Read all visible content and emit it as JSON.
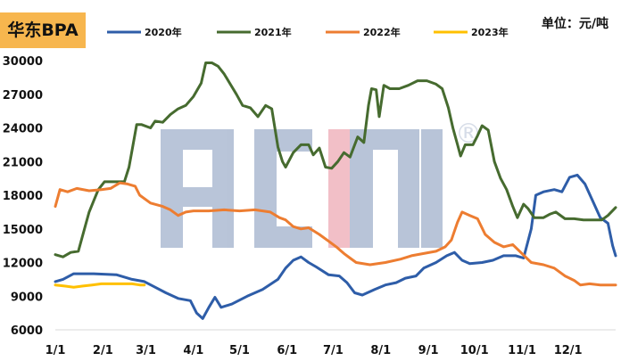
{
  "chart_data": {
    "type": "line",
    "title": "华东BPA",
    "unit_label": "单位：元/吨",
    "ylim": [
      6000,
      30000
    ],
    "y_ticks": [
      "30000",
      "27000",
      "24000",
      "21000",
      "18000",
      "15000",
      "12000",
      "9000",
      "6000"
    ],
    "y_tick_values": [
      30000,
      27000,
      24000,
      21000,
      18000,
      15000,
      12000,
      9000,
      6000
    ],
    "x_ticks": [
      "1/1",
      "2/1",
      "3/1",
      "4/1",
      "5/1",
      "6/1",
      "7/1",
      "8/1",
      "9/1",
      "10/1",
      "11/1",
      "12/1"
    ],
    "x_range_days": [
      0,
      365
    ],
    "legend_position": "top",
    "series": [
      {
        "name": "2020年",
        "color": "#2e5da8",
        "points": [
          [
            0,
            10300
          ],
          [
            5,
            10500
          ],
          [
            12,
            11000
          ],
          [
            25,
            11000
          ],
          [
            40,
            10900
          ],
          [
            50,
            10500
          ],
          [
            58,
            10300
          ],
          [
            65,
            9800
          ],
          [
            72,
            9300
          ],
          [
            80,
            8800
          ],
          [
            88,
            8600
          ],
          [
            92,
            7500
          ],
          [
            96,
            7000
          ],
          [
            100,
            8000
          ],
          [
            104,
            8900
          ],
          [
            108,
            8000
          ],
          [
            115,
            8300
          ],
          [
            125,
            9000
          ],
          [
            135,
            9600
          ],
          [
            145,
            10500
          ],
          [
            150,
            11500
          ],
          [
            155,
            12200
          ],
          [
            160,
            12500
          ],
          [
            165,
            12000
          ],
          [
            170,
            11600
          ],
          [
            178,
            10900
          ],
          [
            185,
            10800
          ],
          [
            190,
            10200
          ],
          [
            195,
            9300
          ],
          [
            200,
            9100
          ],
          [
            208,
            9600
          ],
          [
            215,
            10000
          ],
          [
            222,
            10200
          ],
          [
            228,
            10600
          ],
          [
            235,
            10800
          ],
          [
            240,
            11500
          ],
          [
            248,
            12000
          ],
          [
            255,
            12600
          ],
          [
            260,
            12900
          ],
          [
            265,
            12200
          ],
          [
            270,
            11900
          ],
          [
            278,
            12000
          ],
          [
            285,
            12200
          ],
          [
            292,
            12600
          ],
          [
            300,
            12600
          ],
          [
            305,
            12400
          ],
          [
            310,
            15000
          ],
          [
            313,
            18000
          ],
          [
            318,
            18300
          ],
          [
            325,
            18500
          ],
          [
            330,
            18300
          ],
          [
            335,
            19600
          ],
          [
            340,
            19800
          ],
          [
            345,
            19000
          ],
          [
            350,
            17500
          ],
          [
            355,
            16000
          ],
          [
            360,
            15500
          ],
          [
            363,
            13500
          ],
          [
            365,
            12600
          ]
        ]
      },
      {
        "name": "2021年",
        "color": "#466b2f",
        "points": [
          [
            0,
            12700
          ],
          [
            5,
            12500
          ],
          [
            10,
            12900
          ],
          [
            15,
            13000
          ],
          [
            20,
            15500
          ],
          [
            22,
            16500
          ],
          [
            25,
            17500
          ],
          [
            28,
            18500
          ],
          [
            32,
            19200
          ],
          [
            40,
            19200
          ],
          [
            45,
            19200
          ],
          [
            48,
            20500
          ],
          [
            50,
            22000
          ],
          [
            53,
            24300
          ],
          [
            56,
            24300
          ],
          [
            62,
            24000
          ],
          [
            65,
            24600
          ],
          [
            70,
            24500
          ],
          [
            75,
            25200
          ],
          [
            80,
            25700
          ],
          [
            85,
            26000
          ],
          [
            90,
            26800
          ],
          [
            95,
            28000
          ],
          [
            98,
            29800
          ],
          [
            102,
            29800
          ],
          [
            106,
            29500
          ],
          [
            110,
            28800
          ],
          [
            114,
            27900
          ],
          [
            118,
            27000
          ],
          [
            122,
            26000
          ],
          [
            127,
            25800
          ],
          [
            132,
            25000
          ],
          [
            137,
            26000
          ],
          [
            141,
            25700
          ],
          [
            145,
            22300
          ],
          [
            148,
            21000
          ],
          [
            150,
            20500
          ],
          [
            155,
            21800
          ],
          [
            160,
            22500
          ],
          [
            165,
            22500
          ],
          [
            168,
            21600
          ],
          [
            172,
            22200
          ],
          [
            176,
            20500
          ],
          [
            180,
            20400
          ],
          [
            184,
            21000
          ],
          [
            188,
            21800
          ],
          [
            192,
            21400
          ],
          [
            197,
            23200
          ],
          [
            201,
            22700
          ],
          [
            204,
            26000
          ],
          [
            206,
            27500
          ],
          [
            209,
            27400
          ],
          [
            211,
            25000
          ],
          [
            214,
            27800
          ],
          [
            218,
            27500
          ],
          [
            224,
            27500
          ],
          [
            230,
            27800
          ],
          [
            236,
            28200
          ],
          [
            242,
            28200
          ],
          [
            248,
            27900
          ],
          [
            252,
            27500
          ],
          [
            256,
            25800
          ],
          [
            259,
            24000
          ],
          [
            262,
            22500
          ],
          [
            264,
            21500
          ],
          [
            267,
            22500
          ],
          [
            272,
            22500
          ],
          [
            275,
            23300
          ],
          [
            278,
            24200
          ],
          [
            282,
            23800
          ],
          [
            286,
            21000
          ],
          [
            290,
            19500
          ],
          [
            294,
            18500
          ],
          [
            298,
            17000
          ],
          [
            301,
            16000
          ],
          [
            305,
            17200
          ],
          [
            308,
            16800
          ],
          [
            312,
            16000
          ],
          [
            318,
            16000
          ],
          [
            322,
            16300
          ],
          [
            326,
            16500
          ],
          [
            332,
            15900
          ],
          [
            338,
            15900
          ],
          [
            344,
            15800
          ],
          [
            350,
            15800
          ],
          [
            356,
            15800
          ],
          [
            360,
            16200
          ],
          [
            365,
            16900
          ]
        ]
      },
      {
        "name": "2022年",
        "color": "#ed7d31",
        "points": [
          [
            0,
            17000
          ],
          [
            3,
            18500
          ],
          [
            8,
            18300
          ],
          [
            14,
            18600
          ],
          [
            22,
            18400
          ],
          [
            30,
            18500
          ],
          [
            36,
            18600
          ],
          [
            42,
            19100
          ],
          [
            47,
            19000
          ],
          [
            52,
            18800
          ],
          [
            55,
            18000
          ],
          [
            62,
            17300
          ],
          [
            70,
            17000
          ],
          [
            75,
            16700
          ],
          [
            80,
            16200
          ],
          [
            85,
            16500
          ],
          [
            90,
            16600
          ],
          [
            100,
            16600
          ],
          [
            110,
            16700
          ],
          [
            120,
            16600
          ],
          [
            130,
            16700
          ],
          [
            140,
            16500
          ],
          [
            146,
            16000
          ],
          [
            150,
            15800
          ],
          [
            155,
            15200
          ],
          [
            160,
            15000
          ],
          [
            165,
            15100
          ],
          [
            172,
            14500
          ],
          [
            178,
            13900
          ],
          [
            183,
            13400
          ],
          [
            188,
            12800
          ],
          [
            192,
            12400
          ],
          [
            196,
            12000
          ],
          [
            205,
            11800
          ],
          [
            215,
            12000
          ],
          [
            225,
            12300
          ],
          [
            232,
            12600
          ],
          [
            240,
            12800
          ],
          [
            248,
            13000
          ],
          [
            254,
            13400
          ],
          [
            258,
            14000
          ],
          [
            262,
            15600
          ],
          [
            265,
            16500
          ],
          [
            270,
            16200
          ],
          [
            275,
            15900
          ],
          [
            280,
            14500
          ],
          [
            286,
            13800
          ],
          [
            292,
            13400
          ],
          [
            298,
            13600
          ],
          [
            304,
            12800
          ],
          [
            310,
            12000
          ],
          [
            318,
            11800
          ],
          [
            325,
            11500
          ],
          [
            332,
            10800
          ],
          [
            338,
            10400
          ],
          [
            342,
            10000
          ],
          [
            348,
            10100
          ],
          [
            355,
            10000
          ],
          [
            365,
            10000
          ]
        ]
      },
      {
        "name": "2023年",
        "color": "#ffc000",
        "points": [
          [
            0,
            10000
          ],
          [
            6,
            9900
          ],
          [
            12,
            9800
          ],
          [
            18,
            9900
          ],
          [
            24,
            10000
          ],
          [
            30,
            10100
          ],
          [
            35,
            10100
          ],
          [
            40,
            10100
          ],
          [
            45,
            10100
          ],
          [
            50,
            10100
          ],
          [
            55,
            10000
          ],
          [
            58,
            10000
          ]
        ]
      }
    ]
  },
  "watermark": {
    "text": "ACMI",
    "reg_mark": "®"
  }
}
